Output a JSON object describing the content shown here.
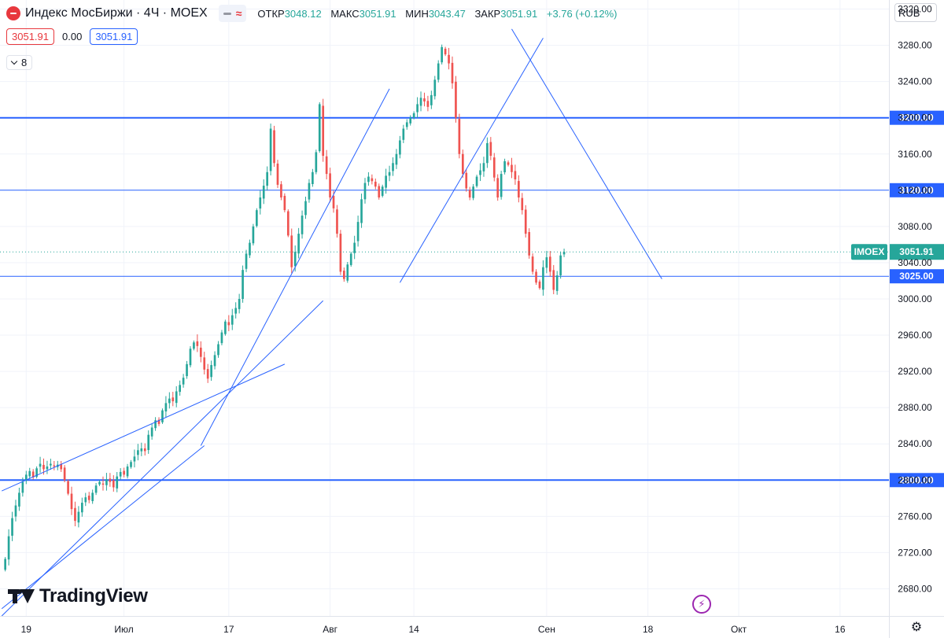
{
  "header": {
    "title": "Индекс МосБиржи · 4Ч · MOEX",
    "ohlc": [
      {
        "key": "ОТКР",
        "value": "3048.12"
      },
      {
        "key": "МАКС",
        "value": "3051.91"
      },
      {
        "key": "МИН",
        "value": "3043.47"
      },
      {
        "key": "ЗАКР",
        "value": "3051.91"
      }
    ],
    "change": "+3.76 (+0.12%)",
    "sell_price": "3051.91",
    "spread": "0.00",
    "buy_price": "3051.91",
    "indicator_count": "8",
    "currency": "RUB",
    "logo_text": "TradingView"
  },
  "colors": {
    "up": "#26a69a",
    "down": "#ef5350",
    "line": "#2962ff",
    "label_bg": "#2962ff",
    "price_tag": "#26a69a"
  },
  "chart_data": {
    "type": "candlestick",
    "symbol": "IMOEX",
    "last_price": "3051.91",
    "ylim": [
      2650,
      3330
    ],
    "y_ticks": [
      "2680.00",
      "2720.00",
      "2760.00",
      "2800.00",
      "2840.00",
      "2880.00",
      "2920.00",
      "2960.00",
      "3000.00",
      "3040.00",
      "3080.00",
      "3120.00",
      "3160.00",
      "3200.00",
      "3240.00",
      "3280.00",
      "3320.00"
    ],
    "x_ticks": [
      {
        "label": "19",
        "bar": 6
      },
      {
        "label": "Июл",
        "bar": 34
      },
      {
        "label": "17",
        "bar": 64
      },
      {
        "label": "Авг",
        "bar": 93
      },
      {
        "label": "14",
        "bar": 117
      },
      {
        "label": "Сен",
        "bar": 155
      },
      {
        "label": "18",
        "bar": 184
      },
      {
        "label": "Окт",
        "bar": 210
      },
      {
        "label": "16",
        "bar": 239
      }
    ],
    "x_range": [
      -1.5,
      253
    ],
    "closes": [
      2713,
      2738,
      2758,
      2772,
      2786,
      2798,
      2806,
      2810,
      2803,
      2813,
      2818,
      2812,
      2815,
      2818,
      2815,
      2817,
      2812,
      2800,
      2785,
      2768,
      2755,
      2765,
      2775,
      2781,
      2778,
      2786,
      2794,
      2798,
      2795,
      2801,
      2798,
      2792,
      2804,
      2809,
      2806,
      2815,
      2820,
      2826,
      2833,
      2835,
      2832,
      2850,
      2858,
      2866,
      2862,
      2877,
      2885,
      2890,
      2887,
      2898,
      2905,
      2913,
      2928,
      2945,
      2952,
      2948,
      2936,
      2922,
      2912,
      2927,
      2938,
      2950,
      2963,
      2975,
      2971,
      2982,
      2990,
      3000,
      3032,
      3050,
      3062,
      3080,
      3098,
      3112,
      3125,
      3140,
      3188,
      3150,
      3126,
      3112,
      3098,
      3070,
      3035,
      3052,
      3072,
      3092,
      3108,
      3128,
      3140,
      3162,
      3215,
      3158,
      3138,
      3112,
      3100,
      3072,
      3030,
      3022,
      3038,
      3050,
      3062,
      3085,
      3110,
      3128,
      3135,
      3130,
      3124,
      3112,
      3124,
      3136,
      3140,
      3150,
      3160,
      3175,
      3188,
      3195,
      3200,
      3205,
      3215,
      3222,
      3218,
      3212,
      3225,
      3242,
      3260,
      3278,
      3270,
      3260,
      3238,
      3200,
      3160,
      3138,
      3122,
      3112,
      3124,
      3135,
      3142,
      3150,
      3172,
      3158,
      3134,
      3112,
      3138,
      3152,
      3148,
      3140,
      3132,
      3112,
      3098,
      3072,
      3048,
      3030,
      3018,
      3012,
      3035,
      3046,
      3030,
      3010,
      3026,
      3048,
      3052
    ]
  },
  "levels": [
    {
      "price": 3200,
      "label": "3200.00",
      "bold": true
    },
    {
      "price": 3120,
      "label": "3120.00",
      "bold": false
    },
    {
      "price": 3025,
      "label": "3025.00",
      "bold": false
    },
    {
      "price": 2800,
      "label": "2800.00",
      "bold": true
    }
  ],
  "trendlines": [
    {
      "from": [
        -1,
        2650
      ],
      "to": [
        91,
        2998
      ]
    },
    {
      "from": [
        -1,
        2658
      ],
      "to": [
        57,
        2838
      ]
    },
    {
      "from": [
        -1,
        2788
      ],
      "to": [
        80,
        2928
      ]
    },
    {
      "from": [
        56,
        2838
      ],
      "to": [
        110,
        3232
      ]
    },
    {
      "from": [
        113,
        3018
      ],
      "to": [
        154,
        3288
      ]
    },
    {
      "from": [
        145,
        3298
      ],
      "to": [
        188,
        3022
      ]
    }
  ]
}
